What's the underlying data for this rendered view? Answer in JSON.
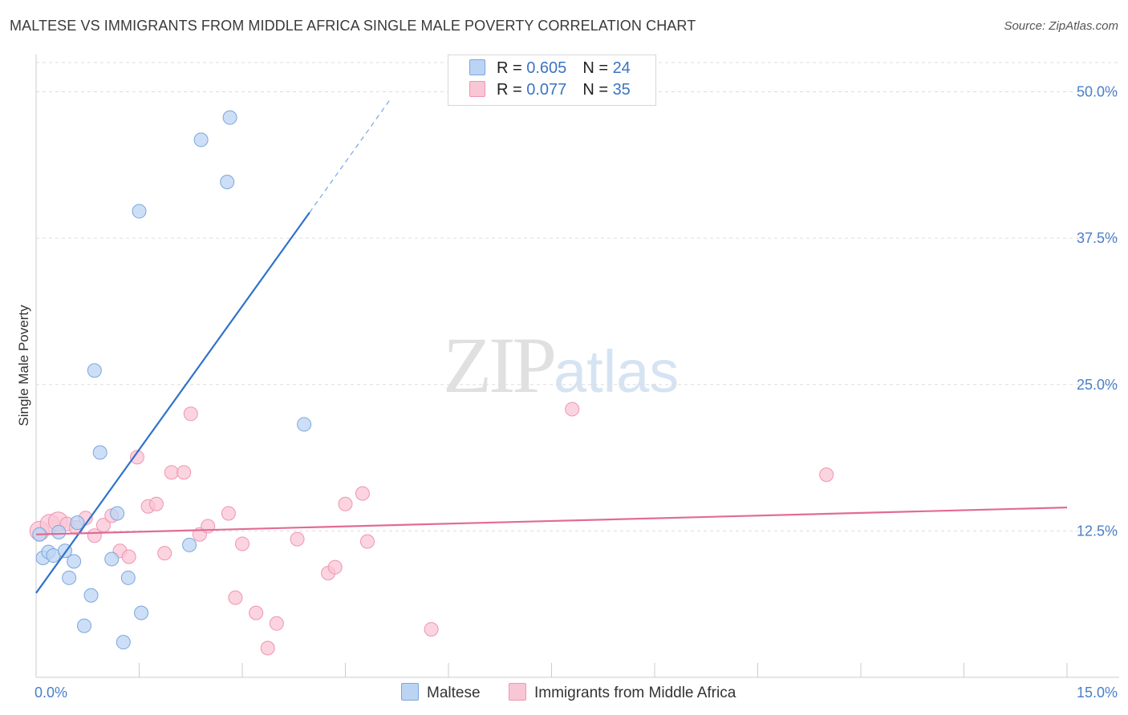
{
  "title": "MALTESE VS IMMIGRANTS FROM MIDDLE AFRICA SINGLE MALE POVERTY CORRELATION CHART",
  "source": "Source: ZipAtlas.com",
  "watermark": {
    "zip": "ZIP",
    "atlas": "atlas"
  },
  "legend": {
    "rows": [
      {
        "r_label": "R = ",
        "r_value": "0.605",
        "n_label": "N = ",
        "n_value": "24"
      },
      {
        "r_label": "R = ",
        "r_value": "0.077",
        "n_label": "N = ",
        "n_value": "35"
      }
    ]
  },
  "colors": {
    "maltese_fill": "#bcd4f3",
    "maltese_stroke": "#7aa6de",
    "maltese_line": "#2f72cc",
    "africa_fill": "#f9c6d6",
    "africa_stroke": "#ee95b2",
    "africa_line": "#e26b96",
    "tick_label": "#4a7fc8",
    "grid": "#dddddd"
  },
  "chart_data": {
    "type": "scatter",
    "title": "MALTESE VS IMMIGRANTS FROM MIDDLE AFRICA SINGLE MALE POVERTY CORRELATION CHART",
    "xlabel": "",
    "ylabel": "Single Male Poverty",
    "xlim": [
      0,
      15
    ],
    "ylim": [
      0,
      52.5
    ],
    "x_tick_labels": [
      "0.0%",
      "15.0%"
    ],
    "x_tick_values": [
      0,
      15
    ],
    "y_tick_labels": [
      "12.5%",
      "25.0%",
      "37.5%",
      "50.0%"
    ],
    "y_tick_values": [
      12.5,
      25,
      37.5,
      50
    ],
    "series": [
      {
        "name": "Maltese",
        "r": 0.605,
        "n": 24,
        "points": [
          [
            0.05,
            12.2
          ],
          [
            0.1,
            10.2
          ],
          [
            0.18,
            10.7
          ],
          [
            0.25,
            10.4
          ],
          [
            0.33,
            12.4
          ],
          [
            0.42,
            10.8
          ],
          [
            0.48,
            8.5
          ],
          [
            0.55,
            9.9
          ],
          [
            0.6,
            13.2
          ],
          [
            0.7,
            4.4
          ],
          [
            0.8,
            7.0
          ],
          [
            0.85,
            26.2
          ],
          [
            0.93,
            19.2
          ],
          [
            1.1,
            10.1
          ],
          [
            1.18,
            14.0
          ],
          [
            1.27,
            3.0
          ],
          [
            1.34,
            8.5
          ],
          [
            1.5,
            39.8
          ],
          [
            1.53,
            5.5
          ],
          [
            2.23,
            11.3
          ],
          [
            2.4,
            45.9
          ],
          [
            2.78,
            42.3
          ],
          [
            2.82,
            47.8
          ],
          [
            3.9,
            21.6
          ]
        ],
        "trend": {
          "x0": 0,
          "y0": 7.2,
          "x1": 3.98,
          "y1": 39.7,
          "dashed_to": [
            5.17,
            49.5
          ]
        }
      },
      {
        "name": "Immigrants from Middle Africa",
        "r": 0.077,
        "n": 35,
        "points": [
          [
            0.05,
            12.5
          ],
          [
            0.2,
            13.1
          ],
          [
            0.32,
            13.3
          ],
          [
            0.45,
            13.1
          ],
          [
            0.58,
            12.8
          ],
          [
            0.72,
            13.6
          ],
          [
            0.85,
            12.1
          ],
          [
            0.98,
            13.0
          ],
          [
            1.1,
            13.8
          ],
          [
            1.22,
            10.8
          ],
          [
            1.35,
            10.3
          ],
          [
            1.47,
            18.8
          ],
          [
            1.63,
            14.6
          ],
          [
            1.75,
            14.8
          ],
          [
            1.87,
            10.6
          ],
          [
            1.97,
            17.5
          ],
          [
            2.15,
            17.5
          ],
          [
            2.25,
            22.5
          ],
          [
            2.38,
            12.2
          ],
          [
            2.5,
            12.9
          ],
          [
            2.8,
            14.0
          ],
          [
            2.9,
            6.8
          ],
          [
            3.0,
            11.4
          ],
          [
            3.2,
            5.5
          ],
          [
            3.37,
            2.5
          ],
          [
            3.5,
            4.6
          ],
          [
            3.8,
            11.8
          ],
          [
            4.25,
            8.9
          ],
          [
            4.35,
            9.4
          ],
          [
            4.5,
            14.8
          ],
          [
            4.75,
            15.7
          ],
          [
            4.82,
            11.6
          ],
          [
            5.75,
            4.1
          ],
          [
            7.8,
            22.9
          ],
          [
            11.5,
            17.3
          ]
        ],
        "trend": {
          "x0": 0,
          "y0": 12.2,
          "x1": 15,
          "y1": 14.5
        }
      }
    ]
  }
}
